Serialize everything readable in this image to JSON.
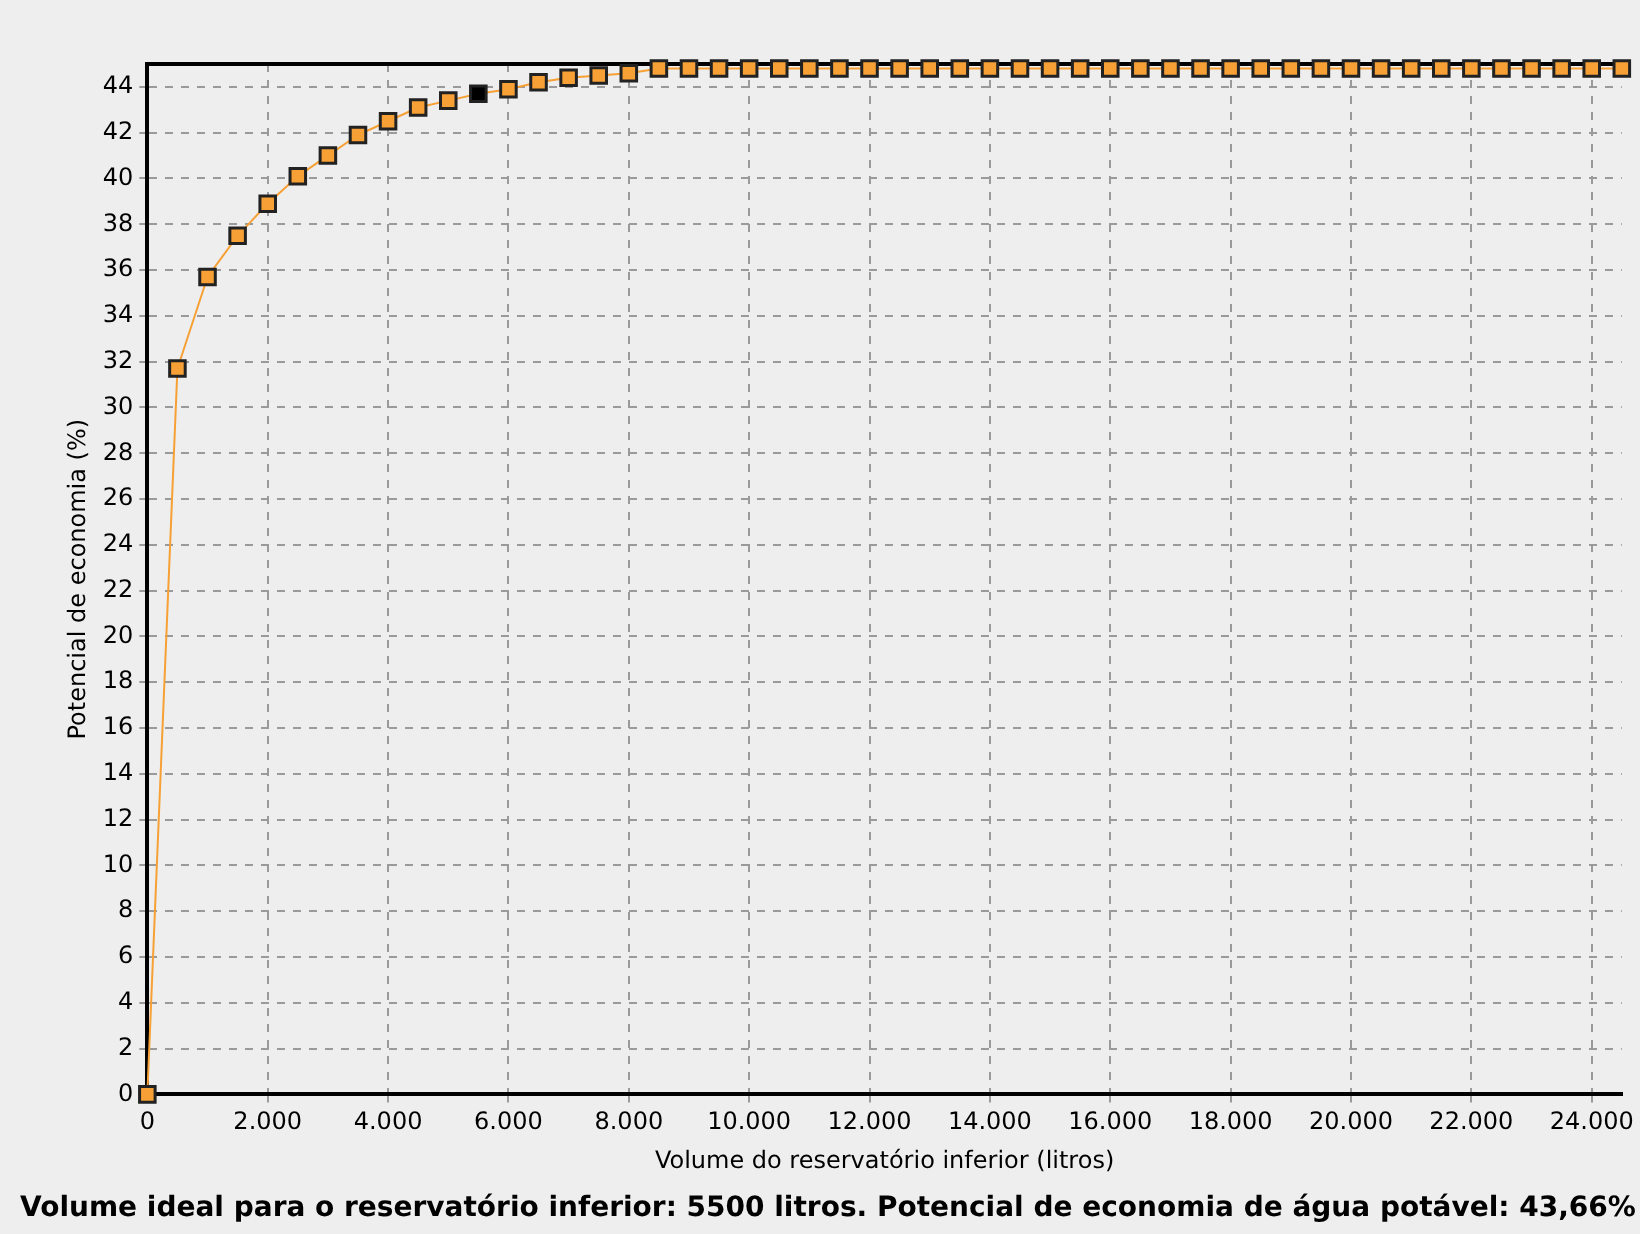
{
  "chart_data": {
    "type": "line",
    "xlabel": "Volume do reservatório inferior (litros)",
    "ylabel": "Potencial de economia (%)",
    "annotations": [
      "Volume ideal para o reservatório inferior: 5500 litros. Potencial de economia de água potável: 43,66%"
    ],
    "x": [
      0,
      500,
      1000,
      1500,
      2000,
      2500,
      3000,
      3500,
      4000,
      4500,
      5000,
      5500,
      6000,
      6500,
      7000,
      7500,
      8000,
      8500,
      9000,
      9500,
      10000,
      10500,
      11000,
      11500,
      12000,
      12500,
      13000,
      13500,
      14000,
      14500,
      15000,
      15500,
      16000,
      16500,
      17000,
      17500,
      18000,
      18500,
      19000,
      19500,
      20000,
      20500,
      21000,
      21500,
      22000,
      22500,
      23000,
      23500,
      24000,
      24500
    ],
    "series": [
      {
        "color": "#f7a035",
        "values": [
          0,
          31.7,
          35.7,
          37.5,
          38.9,
          40.1,
          41.0,
          41.9,
          42.5,
          43.1,
          43.4,
          43.7,
          43.9,
          44.2,
          44.4,
          44.5,
          44.6,
          44.8,
          44.8,
          44.8,
          44.8,
          44.8,
          44.8,
          44.8,
          44.8,
          44.8,
          44.8,
          44.8,
          44.8,
          44.8,
          44.8,
          44.8,
          44.8,
          44.8,
          44.8,
          44.8,
          44.8,
          44.8,
          44.8,
          44.8,
          44.8,
          44.8,
          44.8,
          44.8,
          44.8,
          44.8,
          44.8,
          44.8,
          44.8,
          44.8
        ],
        "colors": [
          "#f7a035",
          "#f7a035",
          "#f7a035",
          "#f7a035",
          "#f7a035",
          "#f7a035",
          "#f7a035",
          "#f7a035",
          "#f7a035",
          "#f7a035",
          "#f7a035",
          "#000000",
          "#f7a035",
          "#f7a035",
          "#f7a035",
          "#f7a035",
          "#f7a035",
          "#f7a035",
          "#f7a035",
          "#f7a035",
          "#f7a035",
          "#f7a035",
          "#f7a035",
          "#f7a035",
          "#f7a035",
          "#f7a035",
          "#f7a035",
          "#f7a035",
          "#f7a035",
          "#f7a035",
          "#f7a035",
          "#f7a035",
          "#f7a035",
          "#f7a035",
          "#f7a035",
          "#f7a035",
          "#f7a035",
          "#f7a035",
          "#f7a035",
          "#f7a035",
          "#f7a035",
          "#f7a035",
          "#f7a035",
          "#f7a035",
          "#f7a035",
          "#f7a035",
          "#f7a035",
          "#f7a035",
          "#f7a035",
          "#f7a035"
        ]
      }
    ],
    "xlim": [
      0,
      24500
    ],
    "xticks": [
      0,
      {
        "value": 2000,
        "label": "2.000"
      },
      {
        "value": 4000,
        "label": "4.000"
      },
      {
        "value": 6000,
        "label": "6.000"
      },
      {
        "value": 8000,
        "label": "8.000"
      },
      {
        "value": 10000,
        "label": "10.000"
      },
      {
        "value": 12000,
        "label": "12.000"
      },
      {
        "value": 14000,
        "label": "14.000"
      },
      {
        "value": 16000,
        "label": "16.000"
      },
      {
        "value": 18000,
        "label": "18.000"
      },
      {
        "value": 20000,
        "label": "20.000"
      },
      {
        "value": 22000,
        "label": "22.000"
      },
      {
        "value": 24000,
        "label": "24.000"
      }
    ],
    "ylim": [
      0,
      45
    ],
    "yticks": [
      0,
      2,
      4,
      6,
      8,
      10,
      12,
      14,
      16,
      18,
      20,
      22,
      24,
      26,
      28,
      30,
      32,
      34,
      36,
      38,
      40,
      42,
      44
    ],
    "grid": true,
    "legend": false,
    "marker": "square",
    "line_style": "solid"
  }
}
